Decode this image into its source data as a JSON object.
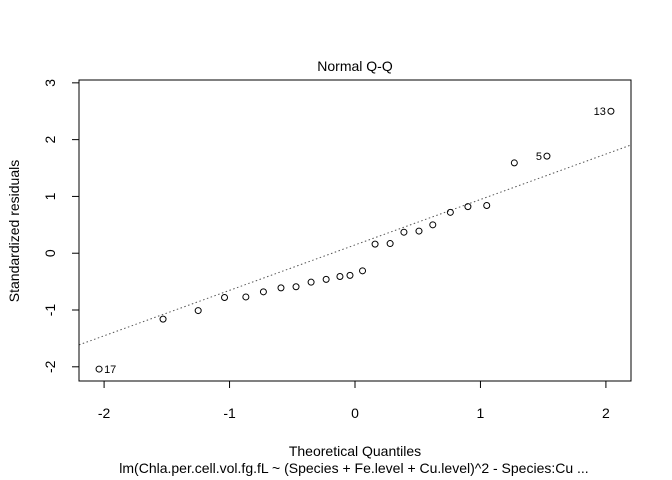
{
  "chart_data": {
    "type": "scatter",
    "title": "Normal Q-Q",
    "xlabel": "Theoretical Quantiles",
    "ylabel": "Standardized residuals",
    "subtitle": "lm(Chla.per.cell.vol.fg.fL ~ (Species + Fe.level + Cu.level)^2 - Species:Cu ...",
    "xlim": [
      -2.2,
      2.2
    ],
    "ylim": [
      -2.25,
      3.05
    ],
    "x_ticks": [
      -2,
      -1,
      0,
      1,
      2
    ],
    "y_ticks": [
      -2,
      -1,
      0,
      1,
      2,
      3
    ],
    "grid": false,
    "reference_line": {
      "intercept": 0.146,
      "slope": 0.8,
      "style": "dotted"
    },
    "points": [
      {
        "x": -2.04,
        "y": -2.04,
        "label": "17"
      },
      {
        "x": -1.53,
        "y": -1.16
      },
      {
        "x": -1.25,
        "y": -1.01
      },
      {
        "x": -1.04,
        "y": -0.78
      },
      {
        "x": -0.87,
        "y": -0.77
      },
      {
        "x": -0.73,
        "y": -0.68
      },
      {
        "x": -0.59,
        "y": -0.61
      },
      {
        "x": -0.47,
        "y": -0.59
      },
      {
        "x": -0.35,
        "y": -0.51
      },
      {
        "x": -0.23,
        "y": -0.46
      },
      {
        "x": -0.12,
        "y": -0.41
      },
      {
        "x": -0.04,
        "y": -0.39
      },
      {
        "x": 0.06,
        "y": -0.31
      },
      {
        "x": 0.16,
        "y": 0.16
      },
      {
        "x": 0.28,
        "y": 0.17
      },
      {
        "x": 0.39,
        "y": 0.37
      },
      {
        "x": 0.51,
        "y": 0.39
      },
      {
        "x": 0.62,
        "y": 0.5
      },
      {
        "x": 0.76,
        "y": 0.72
      },
      {
        "x": 0.9,
        "y": 0.82
      },
      {
        "x": 1.05,
        "y": 0.84
      },
      {
        "x": 1.27,
        "y": 1.59
      },
      {
        "x": 1.53,
        "y": 1.71,
        "label": "5"
      },
      {
        "x": 2.04,
        "y": 2.5,
        "label": "13"
      }
    ]
  }
}
